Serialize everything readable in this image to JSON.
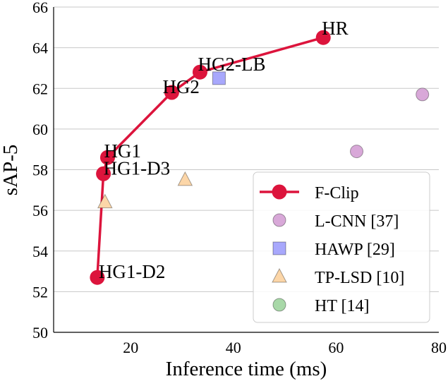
{
  "chart_data": {
    "type": "line",
    "title": "",
    "xlabel": "Inference time (ms)",
    "ylabel": "sAP-5",
    "xlim": [
      5,
      80
    ],
    "ylim": [
      50,
      66
    ],
    "xticks": [
      20,
      40,
      60,
      80
    ],
    "yticks": [
      50,
      52,
      54,
      56,
      58,
      60,
      62,
      64,
      66
    ],
    "grid": "horizontal",
    "legend_position": "bottom-right",
    "series": [
      {
        "name": "F-Clip",
        "kind": "line-marker",
        "color": "#dc143c",
        "points": [
          {
            "label": "HG1-D2",
            "x": 13.5,
            "y": 52.7
          },
          {
            "label": "HG1-D3",
            "x": 14.7,
            "y": 57.8
          },
          {
            "label": "HG1",
            "x": 15.5,
            "y": 58.6
          },
          {
            "label": "HG2",
            "x": 28.0,
            "y": 61.8
          },
          {
            "label": "HG2-LB",
            "x": 33.5,
            "y": 62.8
          },
          {
            "label": "HR",
            "x": 57.5,
            "y": 64.5
          }
        ]
      },
      {
        "name": "L-CNN [37]",
        "kind": "circle",
        "color": "#d8a8d8",
        "points": [
          {
            "x": 64.0,
            "y": 58.9
          },
          {
            "x": 76.8,
            "y": 61.7
          }
        ]
      },
      {
        "name": "HAWP [29]",
        "kind": "square",
        "color": "#a8a8fc",
        "points": [
          {
            "x": 37.2,
            "y": 62.5
          }
        ]
      },
      {
        "name": "TP-LSD [10]",
        "kind": "triangle",
        "color": "#fcd6a8",
        "points": [
          {
            "x": 15.0,
            "y": 56.4
          },
          {
            "x": 30.6,
            "y": 57.5
          }
        ]
      },
      {
        "name": "HT [14]",
        "kind": "circle",
        "color": "#a8d8a8",
        "points": []
      }
    ]
  }
}
